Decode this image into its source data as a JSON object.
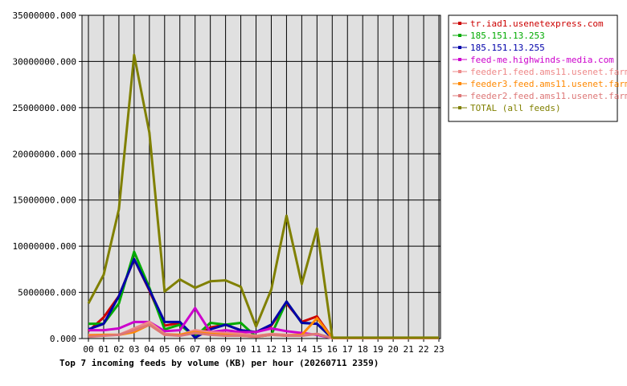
{
  "chart_data": {
    "type": "line",
    "title": "Top 7 incoming feeds by volume (KB) per hour (20260711 2359)",
    "xlabel": "",
    "ylabel": "",
    "ylim": [
      0,
      35000000
    ],
    "y_ticks": [
      "0.000",
      "5000000.000",
      "10000000.000",
      "15000000.000",
      "20000000.000",
      "25000000.000",
      "30000000.000",
      "35000000.000"
    ],
    "categories": [
      "00",
      "01",
      "02",
      "03",
      "04",
      "05",
      "06",
      "07",
      "08",
      "09",
      "10",
      "11",
      "12",
      "13",
      "14",
      "15",
      "16",
      "17",
      "18",
      "19",
      "20",
      "21",
      "22",
      "23"
    ],
    "grid": true,
    "legend_position": "right",
    "series": [
      {
        "name": "tr.iad1.usenetexpress.com",
        "color": "#cc0000",
        "values": [
          800000,
          2300000,
          4600000,
          8600000,
          5200000,
          1400000,
          1700000,
          200000,
          1200000,
          1500000,
          900000,
          700000,
          1400000,
          3800000,
          1800000,
          2400000,
          50000,
          50000,
          50000,
          50000,
          50000,
          50000,
          50000,
          50000
        ]
      },
      {
        "name": "185.151.13.253",
        "color": "#00aa00",
        "values": [
          1600000,
          1600000,
          3800000,
          9400000,
          5500000,
          1000000,
          1500000,
          200000,
          1700000,
          1500000,
          1700000,
          200000,
          400000,
          4000000,
          1700000,
          1600000,
          50000,
          50000,
          50000,
          50000,
          50000,
          50000,
          50000,
          50000
        ]
      },
      {
        "name": "185.151.13.255",
        "color": "#0000aa",
        "values": [
          1000000,
          1600000,
          4600000,
          8600000,
          5300000,
          1800000,
          1800000,
          100000,
          1000000,
          1500000,
          900000,
          700000,
          1500000,
          4000000,
          1700000,
          1600000,
          50000,
          50000,
          50000,
          50000,
          50000,
          50000,
          50000,
          50000
        ]
      },
      {
        "name": "feed-me.highwinds-media.com",
        "color": "#cc00cc",
        "values": [
          900000,
          900000,
          1100000,
          1800000,
          1800000,
          800000,
          900000,
          3300000,
          700000,
          900000,
          700000,
          700000,
          1100000,
          800000,
          600000,
          400000,
          50000,
          50000,
          50000,
          50000,
          50000,
          50000,
          50000,
          50000
        ]
      },
      {
        "name": "feeder1.feed.ams11.usenet.farm",
        "color": "#ee8888",
        "values": [
          400000,
          400000,
          400000,
          1100000,
          1800000,
          500000,
          400000,
          900000,
          700000,
          600000,
          500000,
          300000,
          500000,
          400000,
          400000,
          500000,
          50000,
          50000,
          50000,
          50000,
          50000,
          50000,
          50000,
          50000
        ]
      },
      {
        "name": "feeder3.feed.ams11.usenet.farm",
        "color": "#ff8800",
        "values": [
          300000,
          400000,
          400000,
          700000,
          1500000,
          400000,
          400000,
          700000,
          500000,
          400000,
          300000,
          200000,
          400000,
          300000,
          400000,
          2200000,
          50000,
          50000,
          50000,
          50000,
          50000,
          50000,
          50000,
          50000
        ]
      },
      {
        "name": "feeder2.feed.ams11.usenet.farm",
        "color": "#dd7777",
        "values": [
          200000,
          300000,
          400000,
          900000,
          1500000,
          400000,
          300000,
          600000,
          400000,
          300000,
          300000,
          200000,
          400000,
          300000,
          300000,
          500000,
          50000,
          50000,
          50000,
          50000,
          50000,
          50000,
          50000,
          50000
        ]
      },
      {
        "name": "TOTAL (all feeds)",
        "color": "#808000",
        "values": [
          3800000,
          6900000,
          14000000,
          30700000,
          22300000,
          5100000,
          6400000,
          5500000,
          6200000,
          6300000,
          5600000,
          1300000,
          5300000,
          13300000,
          5900000,
          11900000,
          100000,
          100000,
          100000,
          100000,
          100000,
          100000,
          100000,
          100000
        ]
      }
    ]
  }
}
